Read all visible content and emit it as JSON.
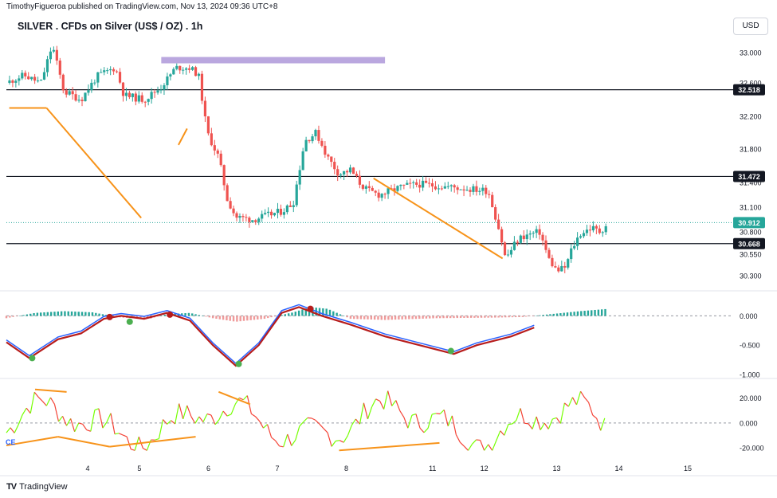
{
  "header": {
    "published_by": "TimothyFigueroa published on TradingView.com, Nov 13, 2024 09:36 UTC+8",
    "symbol_title": "SILVER . CFDs on Silver (US$ / OZ) . 1h",
    "currency_button": "USD",
    "indicator_label": "CE",
    "brand": "TradingView",
    "brand_logo": "TV"
  },
  "colors": {
    "up": "#26a69a",
    "down": "#ef5350",
    "orange": "#f7931a",
    "purple": "#b39ddb",
    "ema_green": "#4caf50",
    "ema_red": "#b71c1c",
    "blue": "#2962ff",
    "osc_green": "#76ff03",
    "osc_red": "#f44336",
    "last_price": "#26a69a"
  },
  "chart_data": [
    {
      "type": "candlestick",
      "name": "price",
      "x_ticks": [
        "4",
        "5",
        "6",
        "7",
        "8",
        "11",
        "12",
        "13",
        "14",
        "15"
      ],
      "y_ticks": [
        "33.000",
        "32.600",
        "32.200",
        "31.800",
        "31.400",
        "31.100",
        "30.800",
        "30.550",
        "30.300"
      ],
      "price_labels": [
        "32.518",
        "31.472",
        "30.912",
        "30.668"
      ],
      "horizontal_levels": [
        32.518,
        31.472,
        30.668
      ],
      "last_price": 30.912,
      "resistance_zone": {
        "from_x": 5.7,
        "to_x": 9.6,
        "price": 32.9
      },
      "close_path": [
        [
          3.0,
          32.6
        ],
        [
          3.3,
          32.7
        ],
        [
          3.6,
          32.6
        ],
        [
          3.8,
          33.1
        ],
        [
          4.0,
          32.5
        ],
        [
          4.3,
          32.4
        ],
        [
          4.6,
          32.7
        ],
        [
          4.9,
          32.8
        ],
        [
          5.05,
          32.45
        ],
        [
          5.4,
          32.4
        ],
        [
          5.7,
          32.55
        ],
        [
          5.95,
          32.8
        ],
        [
          6.2,
          32.8
        ],
        [
          6.35,
          32.7
        ],
        [
          6.5,
          32.0
        ],
        [
          6.7,
          31.7
        ],
        [
          6.85,
          31.2
        ],
        [
          7.0,
          30.98
        ],
        [
          7.3,
          30.95
        ],
        [
          7.55,
          31.0
        ],
        [
          7.8,
          31.05
        ],
        [
          8.0,
          31.15
        ],
        [
          8.2,
          31.9
        ],
        [
          8.4,
          32.0
        ],
        [
          8.6,
          31.7
        ],
        [
          8.8,
          31.5
        ],
        [
          9.0,
          31.55
        ],
        [
          9.15,
          31.4
        ],
        [
          9.3,
          31.3
        ],
        [
          9.5,
          31.25
        ],
        [
          9.7,
          31.3
        ],
        [
          9.9,
          31.35
        ],
        [
          10.2,
          31.38
        ],
        [
          11.4,
          31.3
        ],
        [
          11.6,
          30.8
        ],
        [
          11.7,
          30.5
        ],
        [
          11.9,
          30.7
        ],
        [
          12.0,
          30.75
        ],
        [
          12.3,
          30.8
        ],
        [
          12.45,
          30.5
        ],
        [
          12.6,
          30.35
        ],
        [
          12.75,
          30.4
        ],
        [
          12.85,
          30.6
        ],
        [
          13.0,
          30.78
        ],
        [
          13.2,
          30.85
        ],
        [
          13.35,
          30.8
        ],
        [
          13.5,
          30.92
        ]
      ],
      "trend_lines": [
        {
          "x1": 3.05,
          "y1": 32.3,
          "x2": 3.7,
          "y2": 32.3
        },
        {
          "x1": 3.7,
          "y1": 32.3,
          "x2": 5.35,
          "y2": 30.97
        },
        {
          "x1": 6.0,
          "y1": 31.85,
          "x2": 6.15,
          "y2": 32.05
        },
        {
          "x1": 9.4,
          "y1": 31.45,
          "x2": 11.65,
          "y2": 30.5
        }
      ]
    },
    {
      "type": "histogram_line",
      "name": "momentum",
      "y_ticks": [
        "0.000",
        "-0.500",
        "-1.000"
      ],
      "histogram": [
        [
          3.0,
          -0.04
        ],
        [
          3.5,
          0.05
        ],
        [
          4.0,
          0.08
        ],
        [
          4.5,
          0.06
        ],
        [
          5.0,
          -0.03
        ],
        [
          5.5,
          -0.05
        ],
        [
          5.8,
          0.03
        ],
        [
          6.2,
          0.05
        ],
        [
          6.6,
          -0.04
        ],
        [
          7.0,
          -0.1
        ],
        [
          7.5,
          -0.05
        ],
        [
          8.0,
          0.06
        ],
        [
          8.3,
          0.15
        ],
        [
          8.6,
          0.12
        ],
        [
          9.0,
          -0.05
        ],
        [
          9.6,
          -0.07
        ],
        [
          10.5,
          -0.04
        ],
        [
          11.5,
          -0.03
        ],
        [
          12.0,
          -0.02
        ],
        [
          12.5,
          0.03
        ],
        [
          13.0,
          0.08
        ],
        [
          13.5,
          0.12
        ]
      ],
      "signal_line": [
        [
          3.0,
          -0.45
        ],
        [
          3.4,
          -0.72
        ],
        [
          3.9,
          -0.4
        ],
        [
          4.3,
          -0.3
        ],
        [
          4.7,
          -0.05
        ],
        [
          5.0,
          0.0
        ],
        [
          5.4,
          -0.05
        ],
        [
          5.8,
          0.05
        ],
        [
          6.2,
          -0.08
        ],
        [
          6.6,
          -0.5
        ],
        [
          7.0,
          -0.85
        ],
        [
          7.4,
          -0.5
        ],
        [
          7.8,
          0.05
        ],
        [
          8.1,
          0.15
        ],
        [
          8.5,
          0.0
        ],
        [
          9.0,
          -0.15
        ],
        [
          9.6,
          -0.35
        ],
        [
          10.2,
          -0.5
        ],
        [
          10.8,
          -0.65
        ],
        [
          11.2,
          -0.5
        ],
        [
          11.8,
          -0.35
        ],
        [
          12.2,
          -0.2
        ]
      ],
      "markers": [
        {
          "x": 3.45,
          "y": -0.72,
          "color": "green"
        },
        {
          "x": 4.8,
          "y": -0.02,
          "color": "red"
        },
        {
          "x": 5.15,
          "y": -0.1,
          "color": "green"
        },
        {
          "x": 5.85,
          "y": 0.02,
          "color": "red"
        },
        {
          "x": 7.05,
          "y": -0.82,
          "color": "green"
        },
        {
          "x": 8.3,
          "y": 0.12,
          "color": "red"
        },
        {
          "x": 10.75,
          "y": -0.6,
          "color": "green"
        }
      ]
    },
    {
      "type": "line",
      "name": "oscillator",
      "y_ticks": [
        "20.000",
        "0.000",
        "-20.000"
      ],
      "divergence_lines": [
        {
          "x1": 3.0,
          "y1": -18,
          "x2": 3.9,
          "y2": -11
        },
        {
          "x1": 3.9,
          "y1": -11,
          "x2": 4.8,
          "y2": -19
        },
        {
          "x1": 4.8,
          "y1": -19,
          "x2": 6.3,
          "y2": -11
        },
        {
          "x1": 6.7,
          "y1": 25,
          "x2": 7.25,
          "y2": 15
        },
        {
          "x1": 8.8,
          "y1": -22,
          "x2": 10.55,
          "y2": -16
        },
        {
          "x1": 3.5,
          "y1": 27,
          "x2": 4.05,
          "y2": 25
        }
      ]
    }
  ]
}
